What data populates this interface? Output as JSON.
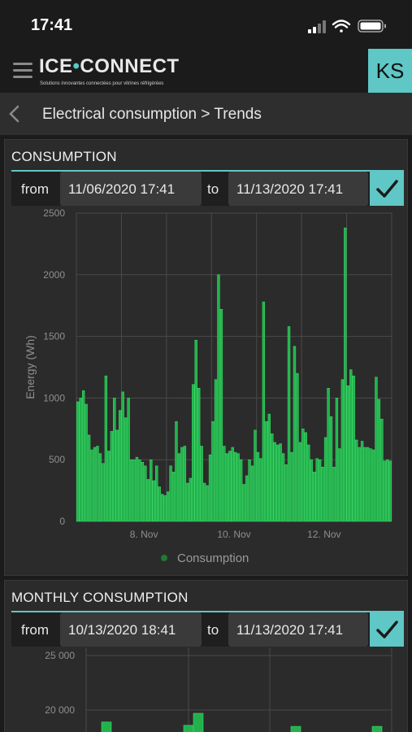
{
  "status": {
    "time": "17:41"
  },
  "header": {
    "logo_part1": "ICE",
    "logo_part2": "CONNECT",
    "logo_tagline": "Solutions innovantes connectées pour vitrines réfrigérées",
    "avatar_initials": "KS"
  },
  "breadcrumb": {
    "text": "Electrical consumption > Trends"
  },
  "colors": {
    "accent": "#5fc7c6",
    "bar": "#22b14c",
    "bar_edge": "#3ee06a",
    "legend_dot": "#1e7a36"
  },
  "consumption": {
    "title": "CONSUMPTION",
    "from_label": "from",
    "from_value": "11/06/2020 17:41",
    "to_label": "to",
    "to_value": "11/13/2020 17:41",
    "apply_icon": "check-icon"
  },
  "monthly": {
    "title": "MONTHLY CONSUMPTION",
    "from_label": "from",
    "from_value": "10/13/2020 18:41",
    "to_label": "to",
    "to_value": "11/13/2020 17:41",
    "apply_icon": "check-icon"
  },
  "chart_data": [
    {
      "type": "bar",
      "title": "",
      "ylabel": "Energy (Wh)",
      "xlabel": "",
      "ylim": [
        0,
        2500
      ],
      "yticks": [
        "0",
        "500",
        "1000",
        "1500",
        "2000",
        "2500"
      ],
      "xticks": [
        "8. Nov",
        "10. Nov",
        "12. Nov"
      ],
      "grid": true,
      "legend": "bottom",
      "series": [
        {
          "name": "Consumption",
          "values": [
            970,
            1000,
            1060,
            950,
            700,
            580,
            600,
            610,
            550,
            470,
            1180,
            570,
            730,
            1000,
            740,
            900,
            1050,
            840,
            1000,
            500,
            500,
            520,
            500,
            480,
            450,
            340,
            500,
            330,
            450,
            280,
            220,
            210,
            240,
            450,
            400,
            810,
            550,
            600,
            610,
            310,
            350,
            1110,
            1470,
            1080,
            610,
            310,
            290,
            540,
            810,
            1150,
            2000,
            1720,
            610,
            550,
            570,
            600,
            560,
            550,
            500,
            300,
            370,
            500,
            450,
            740,
            560,
            510,
            1780,
            810,
            870,
            710,
            640,
            620,
            630,
            550,
            460,
            1580,
            560,
            1420,
            1200,
            640,
            750,
            720,
            620,
            500,
            400,
            510,
            500,
            440,
            680,
            1080,
            850,
            440,
            1000,
            590,
            1150,
            2380,
            1100,
            1230,
            1180,
            660,
            600,
            650,
            600,
            600,
            590,
            580,
            1170,
            990,
            830,
            490,
            500,
            490
          ]
        }
      ]
    },
    {
      "type": "bar",
      "title": "",
      "ylabel": "",
      "xlabel": "",
      "yticks": [
        "20 000",
        "25 000"
      ],
      "ylim": [
        0,
        25000
      ],
      "series": [
        {
          "name": "",
          "values": [
            18900,
            18600,
            19700,
            18500,
            18500
          ]
        }
      ]
    }
  ]
}
